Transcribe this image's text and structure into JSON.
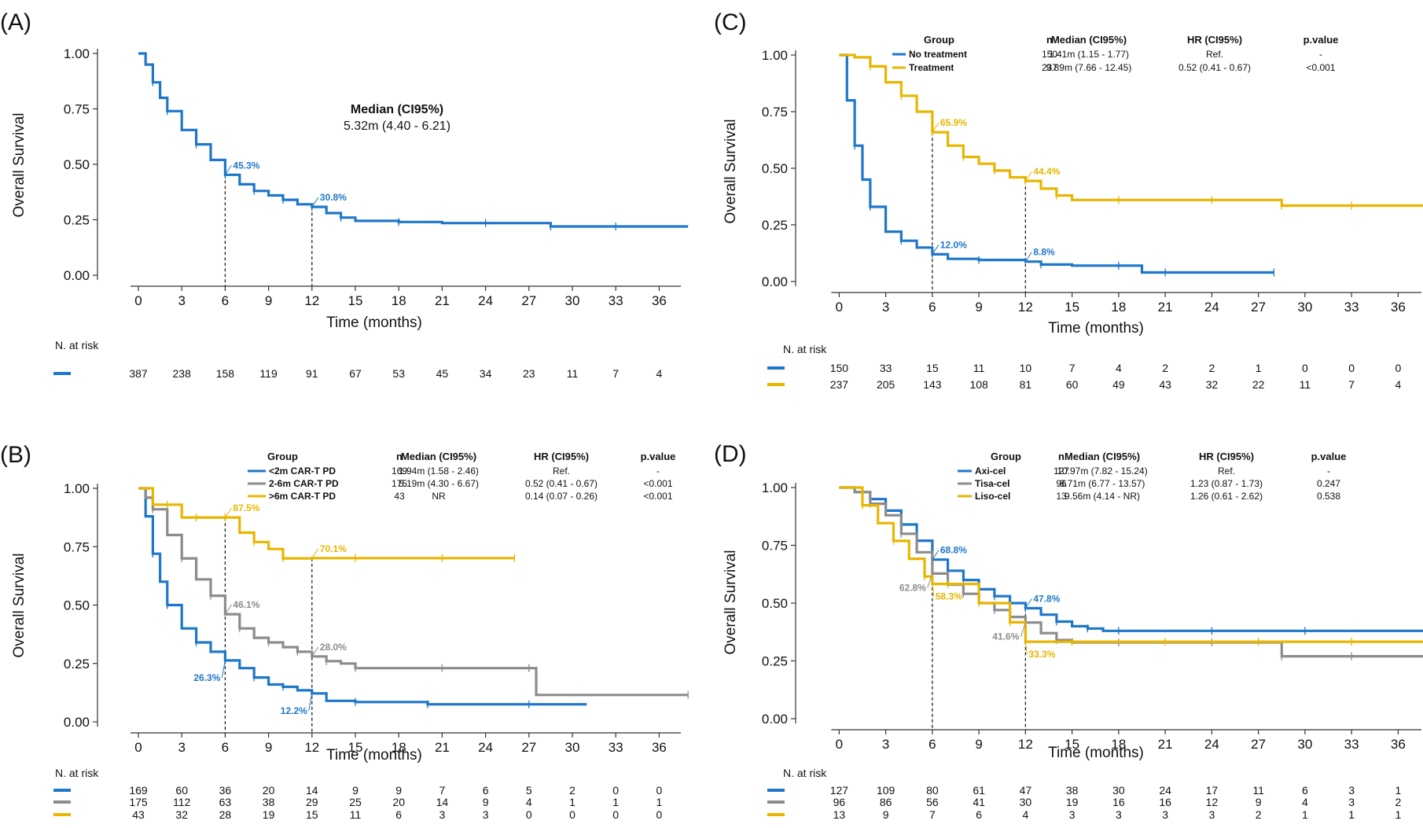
{
  "figure": {
    "panels": [
      "A",
      "B",
      "C",
      "D"
    ]
  },
  "chart_data": [
    {
      "panel_label": "(A)",
      "type": "line",
      "subtype": "kaplan-meier",
      "xlabel": "Time (months)",
      "ylabel": "Overall Survival",
      "xlim": [
        -2.5,
        37.5
      ],
      "ylim": [
        0,
        1
      ],
      "xticks": [
        0,
        3,
        6,
        9,
        12,
        15,
        18,
        21,
        24,
        27,
        30,
        33,
        36
      ],
      "yticks": [
        "0.00",
        "0.25",
        "0.50",
        "0.75",
        "1.00"
      ],
      "grid": false,
      "legend": "none",
      "median_text": {
        "header": "Median (CI95%)",
        "value": "5.32m (4.40 - 6.21)"
      },
      "series": [
        {
          "color": "#1f77c9",
          "x": [
            0,
            0.5,
            1,
            1.5,
            2,
            3,
            4,
            5,
            6,
            7,
            8,
            9,
            10,
            11,
            12,
            13,
            14,
            15,
            18,
            21,
            24,
            27,
            28.5,
            30,
            33,
            38
          ],
          "y": [
            1.0,
            0.95,
            0.87,
            0.8,
            0.74,
            0.655,
            0.59,
            0.52,
            0.453,
            0.41,
            0.38,
            0.36,
            0.34,
            0.32,
            0.308,
            0.28,
            0.26,
            0.245,
            0.24,
            0.235,
            0.235,
            0.235,
            0.22,
            0.22,
            0.22,
            0.22
          ]
        }
      ],
      "annotations": [
        {
          "text": "45.3%",
          "x": 6,
          "y": 0.453,
          "color": "#1f77c9"
        },
        {
          "text": "30.8%",
          "x": 12,
          "y": 0.308,
          "color": "#1f77c9"
        }
      ],
      "vlines": [
        6,
        12
      ],
      "risk_table": {
        "title": "N. at risk",
        "rows": [
          {
            "color": "#1f77c9",
            "values": [
              "387",
              "238",
              "158",
              "119",
              "91",
              "67",
              "53",
              "45",
              "34",
              "23",
              "11",
              "7",
              "4"
            ]
          }
        ]
      }
    },
    {
      "panel_label": "(B)",
      "type": "line",
      "subtype": "kaplan-meier",
      "xlabel": "Time (months)",
      "ylabel": "Overall Survival",
      "xlim": [
        -2.5,
        37.5
      ],
      "ylim": [
        0,
        1
      ],
      "xticks": [
        0,
        3,
        6,
        9,
        12,
        15,
        18,
        21,
        24,
        27,
        30,
        33,
        36
      ],
      "yticks": [
        "0.00",
        "0.25",
        "0.50",
        "0.75",
        "1.00"
      ],
      "grid": false,
      "legend": "top-right",
      "legend_table": {
        "headers": [
          "Group",
          "n",
          "Median (CI95%)",
          "HR (CI95%)",
          "p.value"
        ],
        "rows": [
          [
            "<2m CAR-T PD",
            "169",
            "1.94m (1.58 - 2.46)",
            "Ref.",
            "-"
          ],
          [
            "2-6m CAR-T PD",
            "175",
            "5.19m (4.30 - 6.67)",
            "0.52 (0.41 - 0.67)",
            "<0.001"
          ],
          [
            ">6m CAR-T PD",
            "43",
            "NR",
            "0.14 (0.07 - 0.26)",
            "<0.001"
          ]
        ]
      },
      "series": [
        {
          "color": "#1f77c9",
          "x": [
            0,
            0.5,
            1,
            1.5,
            2,
            3,
            4,
            5,
            6,
            7,
            8,
            9,
            10,
            11,
            12,
            13,
            15,
            18,
            20,
            24,
            27,
            31
          ],
          "y": [
            1.0,
            0.88,
            0.72,
            0.6,
            0.5,
            0.4,
            0.34,
            0.3,
            0.263,
            0.23,
            0.19,
            0.16,
            0.15,
            0.135,
            0.122,
            0.09,
            0.085,
            0.085,
            0.075,
            0.075,
            0.075,
            0.075
          ]
        },
        {
          "color": "#8c8c8c",
          "x": [
            0,
            0.5,
            1,
            2,
            3,
            4,
            5,
            6,
            7,
            8,
            9,
            10,
            11,
            12,
            13,
            14,
            15,
            18,
            21,
            24,
            27,
            27.5,
            38
          ],
          "y": [
            1.0,
            0.96,
            0.91,
            0.8,
            0.7,
            0.61,
            0.54,
            0.461,
            0.4,
            0.36,
            0.34,
            0.32,
            0.3,
            0.28,
            0.26,
            0.25,
            0.23,
            0.23,
            0.23,
            0.23,
            0.23,
            0.115,
            0.115
          ]
        },
        {
          "color": "#e8b600",
          "x": [
            0,
            1,
            2,
            3,
            4,
            5,
            6,
            7,
            8,
            9,
            10,
            12,
            15,
            18,
            21,
            24,
            26
          ],
          "y": [
            1.0,
            0.93,
            0.93,
            0.875,
            0.875,
            0.875,
            0.875,
            0.81,
            0.77,
            0.74,
            0.7,
            0.701,
            0.701,
            0.701,
            0.701,
            0.701,
            0.701
          ]
        }
      ],
      "annotations": [
        {
          "text": "87.5%",
          "x": 6,
          "y": 0.875,
          "color": "#e8b600"
        },
        {
          "text": "70.1%",
          "x": 12,
          "y": 0.701,
          "color": "#e8b600"
        },
        {
          "text": "46.1%",
          "x": 6,
          "y": 0.461,
          "color": "#8c8c8c"
        },
        {
          "text": "28.0%",
          "x": 12,
          "y": 0.28,
          "color": "#8c8c8c"
        },
        {
          "text": "26.3%",
          "x": 6,
          "y": 0.263,
          "color": "#1f77c9"
        },
        {
          "text": "12.2%",
          "x": 12,
          "y": 0.122,
          "color": "#1f77c9"
        }
      ],
      "vlines": [
        6,
        12
      ],
      "risk_table": {
        "title": "N. at risk",
        "rows": [
          {
            "color": "#1f77c9",
            "values": [
              "169",
              "60",
              "36",
              "20",
              "14",
              "9",
              "9",
              "7",
              "6",
              "5",
              "2",
              "0",
              "0"
            ]
          },
          {
            "color": "#8c8c8c",
            "values": [
              "175",
              "112",
              "63",
              "38",
              "29",
              "25",
              "20",
              "14",
              "9",
              "4",
              "1",
              "1",
              "1"
            ]
          },
          {
            "color": "#e8b600",
            "values": [
              "43",
              "32",
              "28",
              "19",
              "15",
              "11",
              "6",
              "3",
              "3",
              "0",
              "0",
              "0",
              "0"
            ]
          }
        ]
      }
    },
    {
      "panel_label": "(C)",
      "type": "line",
      "subtype": "kaplan-meier",
      "xlabel": "Time (months)",
      "ylabel": "Overall Survival",
      "xlim": [
        -2.5,
        37.5
      ],
      "ylim": [
        0,
        1
      ],
      "xticks": [
        0,
        3,
        6,
        9,
        12,
        15,
        18,
        21,
        24,
        27,
        30,
        33,
        36
      ],
      "yticks": [
        "0.00",
        "0.25",
        "0.50",
        "0.75",
        "1.00"
      ],
      "grid": false,
      "legend": "top-right",
      "legend_table": {
        "headers": [
          "Group",
          "n",
          "Median (CI95%)",
          "HR (CI95%)",
          "p.value"
        ],
        "rows": [
          [
            "No treatment",
            "150",
            "1.41m (1.15 - 1.77)",
            "Ref.",
            "-"
          ],
          [
            "Treatment",
            "237",
            "9.89m (7.66 - 12.45)",
            "0.52 (0.41 - 0.67)",
            "<0.001"
          ]
        ]
      },
      "series": [
        {
          "color": "#1f77c9",
          "x": [
            0,
            0.5,
            1,
            1.5,
            2,
            3,
            4,
            5,
            6,
            7,
            9,
            12,
            13,
            15,
            18,
            19.5,
            21,
            24,
            28
          ],
          "y": [
            1.0,
            0.8,
            0.6,
            0.45,
            0.33,
            0.22,
            0.18,
            0.15,
            0.12,
            0.1,
            0.095,
            0.088,
            0.075,
            0.07,
            0.07,
            0.04,
            0.04,
            0.04,
            0.04
          ]
        },
        {
          "color": "#e8b600",
          "x": [
            0,
            1,
            2,
            3,
            4,
            5,
            6,
            7,
            8,
            9,
            10,
            11,
            12,
            13,
            14,
            15,
            18,
            21,
            24,
            27,
            28.5,
            30,
            33,
            38
          ],
          "y": [
            1.0,
            0.99,
            0.95,
            0.88,
            0.82,
            0.75,
            0.659,
            0.6,
            0.55,
            0.52,
            0.49,
            0.46,
            0.444,
            0.41,
            0.38,
            0.36,
            0.36,
            0.36,
            0.36,
            0.36,
            0.335,
            0.335,
            0.335,
            0.335
          ]
        }
      ],
      "annotations": [
        {
          "text": "65.9%",
          "x": 6,
          "y": 0.659,
          "color": "#e8b600"
        },
        {
          "text": "44.4%",
          "x": 12,
          "y": 0.444,
          "color": "#e8b600"
        },
        {
          "text": "12.0%",
          "x": 6,
          "y": 0.12,
          "color": "#1f77c9"
        },
        {
          "text": "8.8%",
          "x": 12,
          "y": 0.088,
          "color": "#1f77c9"
        }
      ],
      "vlines": [
        6,
        12
      ],
      "risk_table": {
        "title": "N. at risk",
        "rows": [
          {
            "color": "#1f77c9",
            "values": [
              "150",
              "33",
              "15",
              "11",
              "10",
              "7",
              "4",
              "2",
              "2",
              "1",
              "0",
              "0",
              "0"
            ]
          },
          {
            "color": "#e8b600",
            "values": [
              "237",
              "205",
              "143",
              "108",
              "81",
              "60",
              "49",
              "43",
              "32",
              "22",
              "11",
              "7",
              "4"
            ]
          }
        ]
      }
    },
    {
      "panel_label": "(D)",
      "type": "line",
      "subtype": "kaplan-meier",
      "xlabel": "Time (months)",
      "ylabel": "Overall Survival",
      "xlim": [
        -2.5,
        37.5
      ],
      "ylim": [
        0,
        1
      ],
      "xticks": [
        0,
        3,
        6,
        9,
        12,
        15,
        18,
        21,
        24,
        27,
        30,
        33,
        36
      ],
      "yticks": [
        "0.00",
        "0.25",
        "0.50",
        "0.75",
        "1.00"
      ],
      "grid": false,
      "legend": "top-right",
      "legend_table": {
        "headers": [
          "Group",
          "n",
          "Median (CI95%)",
          "HR (CI95%)",
          "p.value"
        ],
        "rows": [
          [
            "Axi-cel",
            "127",
            "10.97m (7.82 - 15.24)",
            "Ref.",
            "-"
          ],
          [
            "Tisa-cel",
            "96",
            "8.71m (6.77 - 13.57)",
            "1.23 (0.87 - 1.73)",
            "0.247"
          ],
          [
            "Liso-cel",
            "13",
            "9.56m (4.14 - NR)",
            "1.26 (0.61 - 2.62)",
            "0.538"
          ]
        ]
      },
      "series": [
        {
          "color": "#1f77c9",
          "x": [
            0,
            1,
            2,
            3,
            4,
            5,
            6,
            7,
            8,
            9,
            10,
            11,
            12,
            13,
            14,
            15,
            16,
            17,
            18,
            21,
            24,
            27,
            30,
            33,
            38
          ],
          "y": [
            1.0,
            0.98,
            0.95,
            0.9,
            0.84,
            0.77,
            0.688,
            0.64,
            0.6,
            0.56,
            0.53,
            0.5,
            0.478,
            0.45,
            0.42,
            0.4,
            0.39,
            0.38,
            0.38,
            0.38,
            0.38,
            0.38,
            0.38,
            0.38,
            0.38
          ]
        },
        {
          "color": "#8c8c8c",
          "x": [
            0,
            1,
            2,
            3,
            4,
            5,
            6,
            7,
            8,
            9,
            10,
            11,
            12,
            13,
            14,
            15,
            18,
            21,
            24,
            27,
            28.5,
            30,
            33,
            38
          ],
          "y": [
            1.0,
            0.98,
            0.93,
            0.88,
            0.8,
            0.72,
            0.628,
            0.58,
            0.54,
            0.5,
            0.47,
            0.44,
            0.416,
            0.37,
            0.34,
            0.33,
            0.33,
            0.33,
            0.33,
            0.33,
            0.27,
            0.27,
            0.27,
            0.27
          ]
        },
        {
          "color": "#e8b600",
          "x": [
            0,
            1,
            1.5,
            2.5,
            3.5,
            4.5,
            5.5,
            6,
            7,
            8,
            9,
            10,
            11,
            12,
            15,
            18,
            21,
            24,
            27,
            30,
            33,
            38
          ],
          "y": [
            1.0,
            1.0,
            0.923,
            0.846,
            0.769,
            0.692,
            0.615,
            0.583,
            0.583,
            0.583,
            0.5,
            0.5,
            0.417,
            0.333,
            0.333,
            0.333,
            0.333,
            0.333,
            0.333,
            0.333,
            0.333,
            0.333
          ]
        }
      ],
      "annotations": [
        {
          "text": "68.8%",
          "x": 6,
          "y": 0.688,
          "color": "#1f77c9"
        },
        {
          "text": "62.8%",
          "x": 6,
          "y": 0.628,
          "color": "#8c8c8c"
        },
        {
          "text": "58.3%",
          "x": 6,
          "y": 0.583,
          "color": "#e8b600"
        },
        {
          "text": "47.8%",
          "x": 12,
          "y": 0.478,
          "color": "#1f77c9"
        },
        {
          "text": "41.6%",
          "x": 12,
          "y": 0.416,
          "color": "#8c8c8c"
        },
        {
          "text": "33.3%",
          "x": 12,
          "y": 0.333,
          "color": "#e8b600"
        }
      ],
      "vlines": [
        6,
        12
      ],
      "risk_table": {
        "title": "N. at risk",
        "rows": [
          {
            "color": "#1f77c9",
            "values": [
              "127",
              "109",
              "80",
              "61",
              "47",
              "38",
              "30",
              "24",
              "17",
              "11",
              "6",
              "3",
              "1"
            ]
          },
          {
            "color": "#8c8c8c",
            "values": [
              "96",
              "86",
              "56",
              "41",
              "30",
              "19",
              "16",
              "16",
              "12",
              "9",
              "4",
              "3",
              "2"
            ]
          },
          {
            "color": "#e8b600",
            "values": [
              "13",
              "9",
              "7",
              "6",
              "4",
              "3",
              "3",
              "3",
              "3",
              "2",
              "1",
              "1",
              "1"
            ]
          }
        ]
      }
    }
  ]
}
